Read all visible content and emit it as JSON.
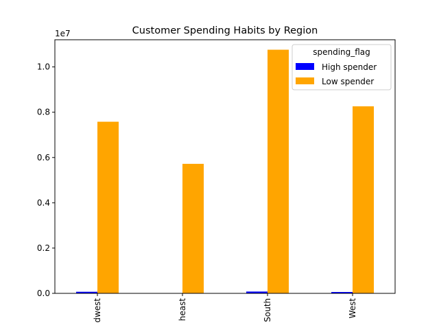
{
  "chart_data": {
    "type": "bar",
    "title": "Customer Spending Habits by Region",
    "xlabel": "",
    "ylabel": "",
    "y_offset_label": "1e7",
    "categories": [
      "Midwest",
      "Northeast",
      "South",
      "West"
    ],
    "category_labels_visible": [
      "dwest",
      "heast",
      "South",
      "West"
    ],
    "legend": {
      "title": "spending_flag",
      "placement": "top-right"
    },
    "series": [
      {
        "name": "High spender",
        "color": "#0000ff",
        "values": [
          0.007,
          0.0,
          0.008,
          0.006
        ]
      },
      {
        "name": "Low spender",
        "color": "#ffa500",
        "values": [
          0.758,
          0.572,
          1.076,
          0.826
        ]
      }
    ],
    "ylim": [
      0,
      1.12
    ],
    "y_ticks": [
      "0.0",
      "0.2",
      "0.4",
      "0.6",
      "0.8",
      "1.0"
    ],
    "grid": false
  }
}
